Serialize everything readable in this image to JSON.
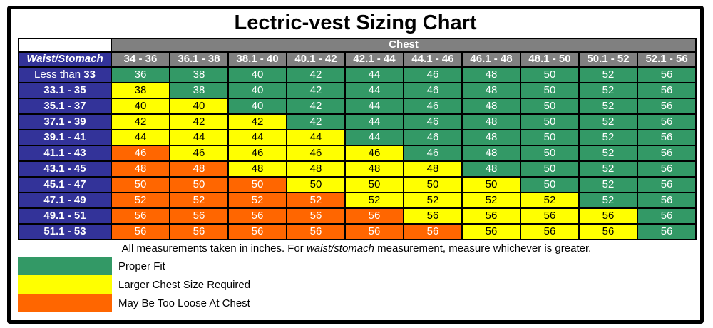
{
  "title": "Lectric-vest Sizing Chart",
  "colors": {
    "g": "#339966",
    "y": "#FFFF00",
    "o": "#FF6600",
    "column_header_gray": "#808080",
    "row_header_navy": "#333399",
    "border_black": "#000000"
  },
  "chart_data": {
    "type": "table",
    "title": "Lectric-vest Sizing Chart",
    "column_group_label": "Chest",
    "row_group_label": "Waist/Stomach",
    "columns": [
      "34 - 36",
      "36.1 - 38",
      "38.1 - 40",
      "40.1 - 42",
      "42.1 - 44",
      "44.1 - 46",
      "46.1 - 48",
      "48.1 - 50",
      "50.1 - 52",
      "52.1 - 56"
    ],
    "fit_codes": {
      "g": "Proper Fit",
      "y": "Larger Chest Size Required",
      "o": "May Be Too Loose At Chest"
    },
    "rows": [
      {
        "waist_prefix": "Less than ",
        "waist_range": "33",
        "sizes": [
          36,
          38,
          40,
          42,
          44,
          46,
          48,
          50,
          52,
          56
        ],
        "fits": [
          "g",
          "g",
          "g",
          "g",
          "g",
          "g",
          "g",
          "g",
          "g",
          "g"
        ]
      },
      {
        "waist_prefix": "",
        "waist_range": "33.1 - 35",
        "sizes": [
          38,
          38,
          40,
          42,
          44,
          46,
          48,
          50,
          52,
          56
        ],
        "fits": [
          "y",
          "g",
          "g",
          "g",
          "g",
          "g",
          "g",
          "g",
          "g",
          "g"
        ]
      },
      {
        "waist_prefix": "",
        "waist_range": "35.1 - 37",
        "sizes": [
          40,
          40,
          40,
          42,
          44,
          46,
          48,
          50,
          52,
          56
        ],
        "fits": [
          "y",
          "y",
          "g",
          "g",
          "g",
          "g",
          "g",
          "g",
          "g",
          "g"
        ]
      },
      {
        "waist_prefix": "",
        "waist_range": "37.1 - 39",
        "sizes": [
          42,
          42,
          42,
          42,
          44,
          46,
          48,
          50,
          52,
          56
        ],
        "fits": [
          "y",
          "y",
          "y",
          "g",
          "g",
          "g",
          "g",
          "g",
          "g",
          "g"
        ]
      },
      {
        "waist_prefix": "",
        "waist_range": "39.1 - 41",
        "sizes": [
          44,
          44,
          44,
          44,
          44,
          46,
          48,
          50,
          52,
          56
        ],
        "fits": [
          "y",
          "y",
          "y",
          "y",
          "g",
          "g",
          "g",
          "g",
          "g",
          "g"
        ]
      },
      {
        "waist_prefix": "",
        "waist_range": "41.1 - 43",
        "sizes": [
          46,
          46,
          46,
          46,
          46,
          46,
          48,
          50,
          52,
          56
        ],
        "fits": [
          "o",
          "y",
          "y",
          "y",
          "y",
          "g",
          "g",
          "g",
          "g",
          "g"
        ]
      },
      {
        "waist_prefix": "",
        "waist_range": "43.1 - 45",
        "sizes": [
          48,
          48,
          48,
          48,
          48,
          48,
          48,
          50,
          52,
          56
        ],
        "fits": [
          "o",
          "o",
          "y",
          "y",
          "y",
          "y",
          "g",
          "g",
          "g",
          "g"
        ]
      },
      {
        "waist_prefix": "",
        "waist_range": "45.1 - 47",
        "sizes": [
          50,
          50,
          50,
          50,
          50,
          50,
          50,
          50,
          52,
          56
        ],
        "fits": [
          "o",
          "o",
          "o",
          "y",
          "y",
          "y",
          "y",
          "g",
          "g",
          "g"
        ]
      },
      {
        "waist_prefix": "",
        "waist_range": "47.1 - 49",
        "sizes": [
          52,
          52,
          52,
          52,
          52,
          52,
          52,
          52,
          52,
          56
        ],
        "fits": [
          "o",
          "o",
          "o",
          "o",
          "y",
          "y",
          "y",
          "y",
          "g",
          "g"
        ]
      },
      {
        "waist_prefix": "",
        "waist_range": "49.1 - 51",
        "sizes": [
          56,
          56,
          56,
          56,
          56,
          56,
          56,
          56,
          56,
          56
        ],
        "fits": [
          "o",
          "o",
          "o",
          "o",
          "o",
          "y",
          "y",
          "y",
          "y",
          "g"
        ]
      },
      {
        "waist_prefix": "",
        "waist_range": "51.1 - 53",
        "sizes": [
          56,
          56,
          56,
          56,
          56,
          56,
          56,
          56,
          56,
          56
        ],
        "fits": [
          "o",
          "o",
          "o",
          "o",
          "o",
          "o",
          "y",
          "y",
          "y",
          "g"
        ]
      }
    ]
  },
  "note": {
    "pre": "All measurements taken in inches. For ",
    "italic": "waist/stomach",
    "post": " measurement, measure whichever is greater."
  },
  "legend": [
    {
      "fit": "g",
      "label": "Proper Fit"
    },
    {
      "fit": "y",
      "label": "Larger Chest Size Required"
    },
    {
      "fit": "o",
      "label": "May Be Too Loose At Chest"
    }
  ]
}
